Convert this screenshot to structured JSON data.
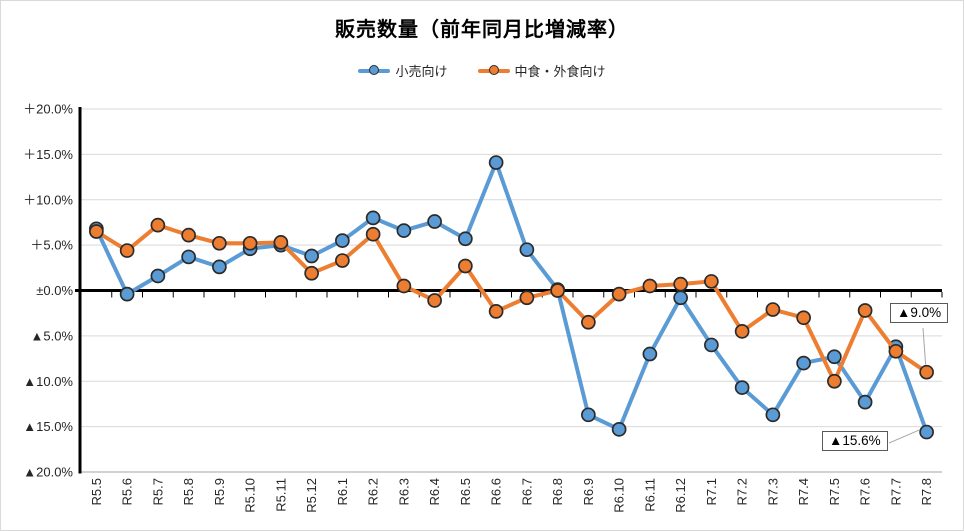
{
  "title": "販売数量（前年同月比増減率）",
  "chart_data": {
    "type": "line",
    "categories": [
      "R5.5",
      "R5.6",
      "R5.7",
      "R5.8",
      "R5.9",
      "R5.10",
      "R5.11",
      "R5.12",
      "R6.1",
      "R6.2",
      "R6.3",
      "R6.4",
      "R6.5",
      "R6.6",
      "R6.7",
      "R6.8",
      "R6.9",
      "R6.10",
      "R6.11",
      "R6.12",
      "R7.1",
      "R7.2",
      "R7.3",
      "R7.4",
      "R7.5",
      "R7.6",
      "R7.7",
      "R7.8"
    ],
    "series": [
      {
        "name": "小売向け",
        "color": "#5B9BD5",
        "values": [
          6.8,
          -0.4,
          1.6,
          3.7,
          2.6,
          4.6,
          5.0,
          3.8,
          5.5,
          8.0,
          6.6,
          7.6,
          5.7,
          14.1,
          4.5,
          0.1,
          -13.7,
          -15.3,
          -7.0,
          -0.8,
          -6.0,
          -10.7,
          -13.7,
          -8.0,
          -7.3,
          -12.3,
          -6.2,
          -15.6
        ]
      },
      {
        "name": "中食・外食向け",
        "color": "#ED7D31",
        "values": [
          6.5,
          4.4,
          7.2,
          6.1,
          5.2,
          5.2,
          5.3,
          1.9,
          3.3,
          6.2,
          0.5,
          -1.1,
          2.7,
          -2.3,
          -0.8,
          0.0,
          -3.5,
          -0.4,
          0.5,
          0.7,
          1.0,
          -4.5,
          -2.1,
          -3.0,
          -10.0,
          -2.2,
          -6.7,
          -9.0
        ]
      }
    ],
    "ylim": [
      -20,
      20
    ],
    "y_ticks": [
      {
        "label": "＋20.0%",
        "value": 20
      },
      {
        "label": "＋15.0%",
        "value": 15
      },
      {
        "label": "＋10.0%",
        "value": 10
      },
      {
        "label": "＋5.0%",
        "value": 5
      },
      {
        "label": "±0.0%",
        "value": 0
      },
      {
        "label": "▲5.0%",
        "value": -5
      },
      {
        "label": "▲10.0%",
        "value": -10
      },
      {
        "label": "▲15.0%",
        "value": -15
      },
      {
        "label": "▲20.0%",
        "value": -20
      }
    ],
    "grid": true,
    "legend_position": "top",
    "annotations": [
      {
        "text": "▲9.0%",
        "series": "中食・外食向け",
        "category": "R7.8",
        "value": -9.0
      },
      {
        "text": "▲15.6%",
        "series": "小売向け",
        "category": "R7.8",
        "value": -15.6
      }
    ]
  },
  "colors": {
    "series_retail": "#5B9BD5",
    "series_foodservice": "#ED7D31",
    "marker_border": "#2b2b2b",
    "gridline": "#d9d9d9",
    "axis": "#000000",
    "callout_border": "#595959",
    "leader_line": "#a6a6a6"
  }
}
